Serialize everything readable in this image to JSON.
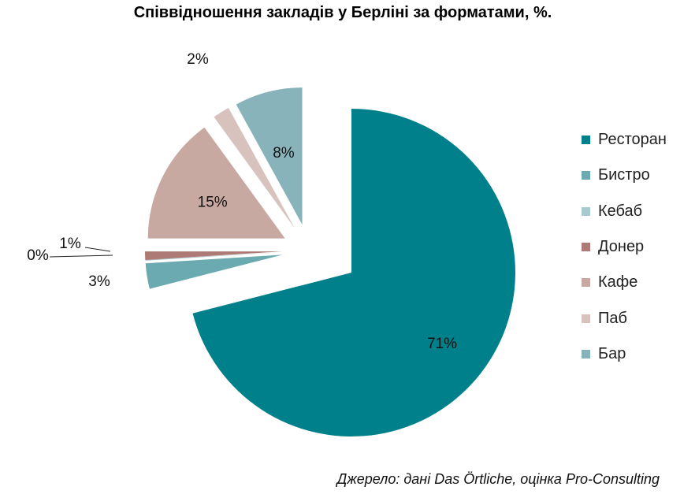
{
  "title": "Співвідношення закладів у Берліні за форматами, %.",
  "source": "Джерело: дані Das Örtliche, оцінка Pro-Consulting",
  "chart_data": {
    "type": "pie",
    "title": "Співвідношення закладів у Берліні за форматами, %.",
    "categories": [
      "Ресторан",
      "Бистро",
      "Кебаб",
      "Донер",
      "Кафе",
      "Паб",
      "Бар"
    ],
    "values": [
      71,
      3,
      0,
      1,
      15,
      2,
      8
    ],
    "labels": [
      "71%",
      "3%",
      "0%",
      "1%",
      "15%",
      "2%",
      "8%"
    ],
    "colors": [
      "#00808A",
      "#6AAAB0",
      "#A8C9CD",
      "#AE7A76",
      "#C8A9A2",
      "#D8C2BE",
      "#88B3BB"
    ],
    "legend_position": "right",
    "exploded": true
  }
}
